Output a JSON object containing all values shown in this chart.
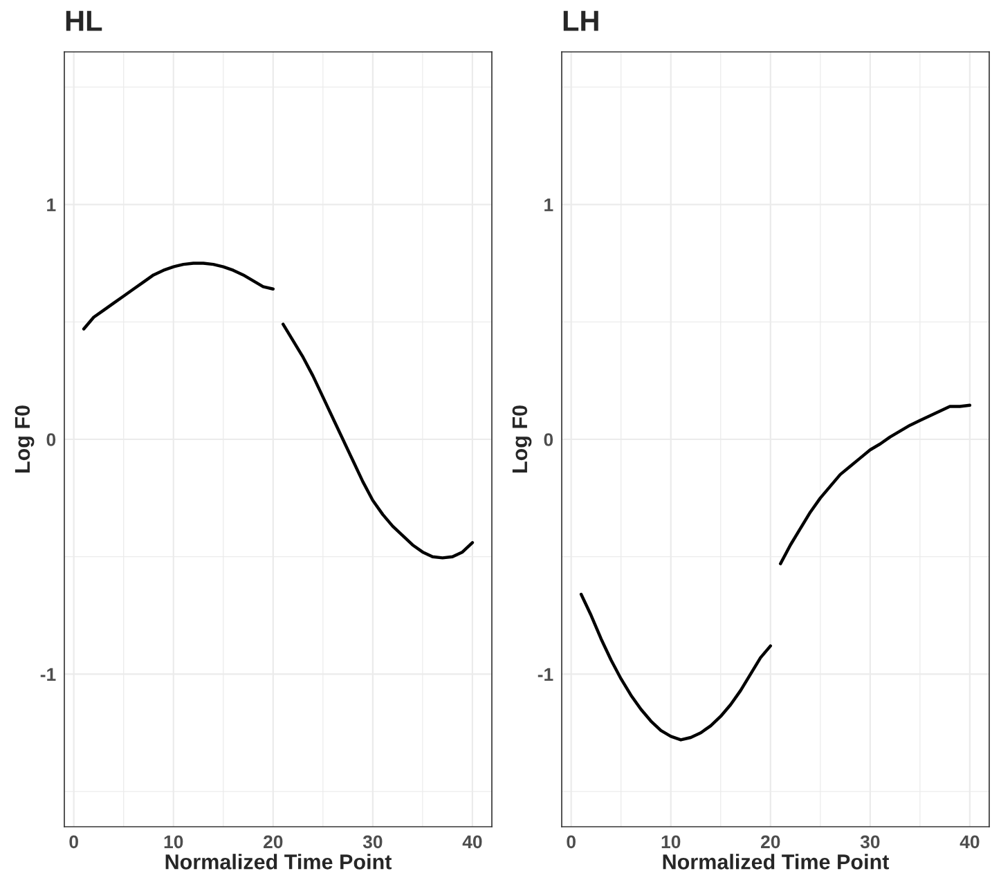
{
  "chart_data": [
    {
      "type": "line",
      "title": "HL",
      "xlabel": "Normalized Time Point",
      "ylabel": "Log F0",
      "xlim": [
        -0.95,
        41.95
      ],
      "ylim": [
        -1.65,
        1.65
      ],
      "xticks": [
        0,
        10,
        20,
        30,
        40
      ],
      "yticks": [
        -1,
        0,
        1
      ],
      "grid": true,
      "line_style": "solid",
      "marker": "none",
      "series": [
        {
          "color": "#000000",
          "x": [
            1,
            2,
            3,
            4,
            5,
            6,
            7,
            8,
            9,
            10,
            11,
            12,
            13,
            14,
            15,
            16,
            17,
            18,
            19,
            20
          ],
          "values": [
            0.47,
            0.52,
            0.55,
            0.58,
            0.61,
            0.64,
            0.67,
            0.7,
            0.72,
            0.735,
            0.745,
            0.75,
            0.75,
            0.745,
            0.735,
            0.72,
            0.7,
            0.675,
            0.65,
            0.64
          ]
        },
        {
          "color": "#000000",
          "x": [
            21,
            22,
            23,
            24,
            25,
            26,
            27,
            28,
            29,
            30,
            31,
            32,
            33,
            34,
            35,
            36,
            37,
            38,
            39,
            40
          ],
          "values": [
            0.49,
            0.42,
            0.35,
            0.27,
            0.18,
            0.09,
            0.0,
            -0.09,
            -0.18,
            -0.26,
            -0.32,
            -0.37,
            -0.41,
            -0.45,
            -0.48,
            -0.5,
            -0.505,
            -0.5,
            -0.48,
            -0.44
          ]
        }
      ]
    },
    {
      "type": "line",
      "title": "LH",
      "xlabel": "Normalized Time Point",
      "ylabel": "Log F0",
      "xlim": [
        -0.95,
        41.95
      ],
      "ylim": [
        -1.65,
        1.65
      ],
      "xticks": [
        0,
        10,
        20,
        30,
        40
      ],
      "yticks": [
        -1,
        0,
        1
      ],
      "grid": true,
      "line_style": "solid",
      "marker": "none",
      "series": [
        {
          "color": "#000000",
          "x": [
            1,
            2,
            3,
            4,
            5,
            6,
            7,
            8,
            9,
            10,
            11,
            12,
            13,
            14,
            15,
            16,
            17,
            18,
            19,
            20
          ],
          "values": [
            -0.66,
            -0.75,
            -0.85,
            -0.94,
            -1.02,
            -1.09,
            -1.15,
            -1.2,
            -1.24,
            -1.265,
            -1.28,
            -1.27,
            -1.25,
            -1.22,
            -1.18,
            -1.13,
            -1.07,
            -1.0,
            -0.93,
            -0.88
          ]
        },
        {
          "color": "#000000",
          "x": [
            21,
            22,
            23,
            24,
            25,
            26,
            27,
            28,
            29,
            30,
            31,
            32,
            33,
            34,
            35,
            36,
            37,
            38,
            39,
            40
          ],
          "values": [
            -0.53,
            -0.45,
            -0.38,
            -0.31,
            -0.25,
            -0.2,
            -0.15,
            -0.115,
            -0.08,
            -0.045,
            -0.02,
            0.01,
            0.035,
            0.06,
            0.08,
            0.1,
            0.12,
            0.14,
            0.14,
            0.145
          ]
        }
      ]
    }
  ]
}
